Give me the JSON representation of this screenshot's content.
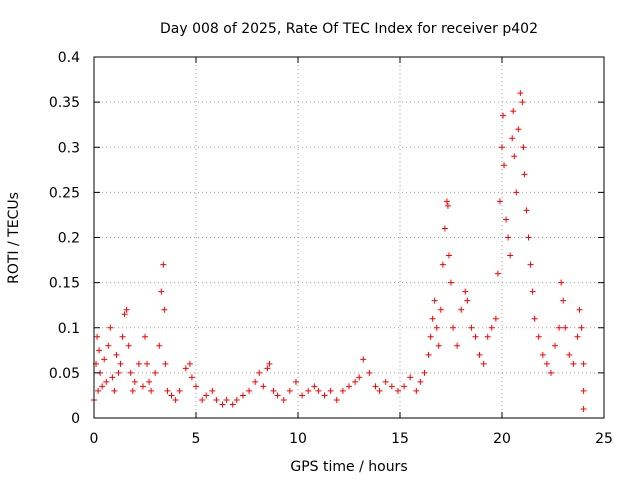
{
  "chart_data": {
    "type": "scatter",
    "title": "Day 008 of 2025, Rate Of TEC Index for receiver p402",
    "xlabel": "GPS time / hours",
    "ylabel": "ROTI / TECUs",
    "xlim": [
      0,
      25
    ],
    "ylim": [
      0,
      0.4
    ],
    "x_ticks": [
      "0",
      "5",
      "10",
      "15",
      "20",
      "25"
    ],
    "y_ticks": [
      "0",
      "0.05",
      "0.1",
      "0.15",
      "0.2",
      "0.25",
      "0.3",
      "0.35",
      "0.4"
    ],
    "x_tick_values": [
      0,
      5,
      10,
      15,
      20,
      25
    ],
    "y_tick_values": [
      0,
      0.05,
      0.1,
      0.15,
      0.2,
      0.25,
      0.3,
      0.35,
      0.4
    ],
    "grid": true,
    "marker": "+",
    "series_color": "#ff0000",
    "series": [
      {
        "points": [
          [
            0.0,
            0.02
          ],
          [
            0.1,
            0.06
          ],
          [
            0.15,
            0.09
          ],
          [
            0.2,
            0.03
          ],
          [
            0.25,
            0.075
          ],
          [
            0.3,
            0.05
          ],
          [
            0.4,
            0.035
          ],
          [
            0.5,
            0.065
          ],
          [
            0.6,
            0.04
          ],
          [
            0.7,
            0.08
          ],
          [
            0.8,
            0.1
          ],
          [
            0.9,
            0.045
          ],
          [
            1.0,
            0.03
          ],
          [
            1.1,
            0.07
          ],
          [
            1.2,
            0.05
          ],
          [
            1.3,
            0.06
          ],
          [
            1.4,
            0.09
          ],
          [
            1.5,
            0.115
          ],
          [
            1.6,
            0.12
          ],
          [
            1.7,
            0.08
          ],
          [
            1.8,
            0.05
          ],
          [
            1.9,
            0.03
          ],
          [
            2.0,
            0.04
          ],
          [
            2.2,
            0.06
          ],
          [
            2.4,
            0.035
          ],
          [
            2.5,
            0.09
          ],
          [
            2.6,
            0.06
          ],
          [
            2.7,
            0.04
          ],
          [
            2.8,
            0.03
          ],
          [
            3.0,
            0.05
          ],
          [
            3.2,
            0.08
          ],
          [
            3.3,
            0.14
          ],
          [
            3.4,
            0.17
          ],
          [
            3.45,
            0.12
          ],
          [
            3.5,
            0.06
          ],
          [
            3.6,
            0.03
          ],
          [
            3.8,
            0.025
          ],
          [
            4.0,
            0.02
          ],
          [
            4.2,
            0.03
          ],
          [
            4.5,
            0.055
          ],
          [
            4.7,
            0.06
          ],
          [
            4.8,
            0.045
          ],
          [
            5.0,
            0.035
          ],
          [
            5.3,
            0.02
          ],
          [
            5.5,
            0.025
          ],
          [
            5.8,
            0.03
          ],
          [
            6.0,
            0.02
          ],
          [
            6.3,
            0.015
          ],
          [
            6.5,
            0.02
          ],
          [
            6.8,
            0.015
          ],
          [
            7.0,
            0.02
          ],
          [
            7.3,
            0.025
          ],
          [
            7.6,
            0.03
          ],
          [
            7.9,
            0.04
          ],
          [
            8.1,
            0.05
          ],
          [
            8.3,
            0.035
          ],
          [
            8.5,
            0.055
          ],
          [
            8.6,
            0.06
          ],
          [
            8.8,
            0.03
          ],
          [
            9.0,
            0.025
          ],
          [
            9.3,
            0.02
          ],
          [
            9.6,
            0.03
          ],
          [
            9.9,
            0.04
          ],
          [
            10.2,
            0.025
          ],
          [
            10.5,
            0.03
          ],
          [
            10.8,
            0.035
          ],
          [
            11.0,
            0.03
          ],
          [
            11.3,
            0.025
          ],
          [
            11.6,
            0.03
          ],
          [
            11.9,
            0.02
          ],
          [
            12.2,
            0.03
          ],
          [
            12.5,
            0.035
          ],
          [
            12.8,
            0.04
          ],
          [
            13.0,
            0.045
          ],
          [
            13.2,
            0.065
          ],
          [
            13.5,
            0.05
          ],
          [
            13.8,
            0.035
          ],
          [
            14.0,
            0.03
          ],
          [
            14.3,
            0.04
          ],
          [
            14.6,
            0.035
          ],
          [
            14.9,
            0.03
          ],
          [
            15.2,
            0.035
          ],
          [
            15.5,
            0.045
          ],
          [
            15.8,
            0.03
          ],
          [
            16.0,
            0.04
          ],
          [
            16.2,
            0.05
          ],
          [
            16.4,
            0.07
          ],
          [
            16.5,
            0.09
          ],
          [
            16.6,
            0.11
          ],
          [
            16.7,
            0.13
          ],
          [
            16.8,
            0.1
          ],
          [
            16.9,
            0.08
          ],
          [
            17.0,
            0.12
          ],
          [
            17.1,
            0.17
          ],
          [
            17.2,
            0.21
          ],
          [
            17.3,
            0.24
          ],
          [
            17.35,
            0.235
          ],
          [
            17.4,
            0.18
          ],
          [
            17.5,
            0.15
          ],
          [
            17.6,
            0.1
          ],
          [
            17.8,
            0.08
          ],
          [
            18.0,
            0.12
          ],
          [
            18.2,
            0.14
          ],
          [
            18.3,
            0.13
          ],
          [
            18.5,
            0.1
          ],
          [
            18.7,
            0.09
          ],
          [
            18.9,
            0.07
          ],
          [
            19.1,
            0.06
          ],
          [
            19.3,
            0.09
          ],
          [
            19.5,
            0.1
          ],
          [
            19.7,
            0.11
          ],
          [
            19.8,
            0.16
          ],
          [
            19.9,
            0.24
          ],
          [
            20.0,
            0.3
          ],
          [
            20.05,
            0.335
          ],
          [
            20.1,
            0.28
          ],
          [
            20.2,
            0.22
          ],
          [
            20.3,
            0.2
          ],
          [
            20.4,
            0.18
          ],
          [
            20.5,
            0.31
          ],
          [
            20.55,
            0.34
          ],
          [
            20.6,
            0.29
          ],
          [
            20.7,
            0.25
          ],
          [
            20.8,
            0.32
          ],
          [
            20.9,
            0.36
          ],
          [
            21.0,
            0.35
          ],
          [
            21.05,
            0.3
          ],
          [
            21.1,
            0.27
          ],
          [
            21.2,
            0.23
          ],
          [
            21.3,
            0.2
          ],
          [
            21.4,
            0.17
          ],
          [
            21.5,
            0.14
          ],
          [
            21.6,
            0.11
          ],
          [
            21.8,
            0.09
          ],
          [
            22.0,
            0.07
          ],
          [
            22.2,
            0.06
          ],
          [
            22.4,
            0.05
          ],
          [
            22.6,
            0.08
          ],
          [
            22.8,
            0.1
          ],
          [
            22.9,
            0.15
          ],
          [
            23.0,
            0.13
          ],
          [
            23.1,
            0.1
          ],
          [
            23.3,
            0.07
          ],
          [
            23.5,
            0.06
          ],
          [
            23.7,
            0.09
          ],
          [
            23.8,
            0.12
          ],
          [
            23.9,
            0.1
          ],
          [
            24.0,
            0.06
          ],
          [
            24.0,
            0.03
          ],
          [
            24.0,
            0.01
          ]
        ]
      }
    ]
  }
}
